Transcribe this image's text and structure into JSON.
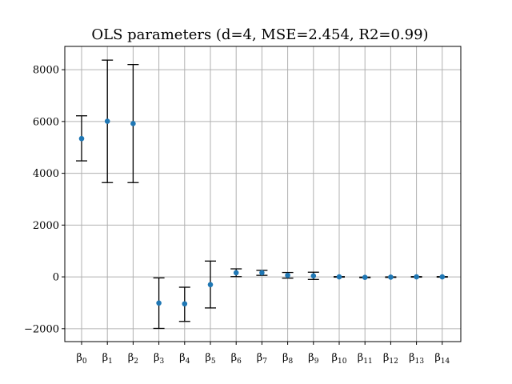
{
  "chart_data": {
    "type": "scatter",
    "title": "OLS parameters (d=4, MSE=2.454, R2=0.99)",
    "xlabel": "",
    "ylabel": "",
    "grid": true,
    "error_bars": true,
    "marker_color": "#1f77b4",
    "errorbar_color": "#000000",
    "ylim": [
      -2500,
      8900
    ],
    "yticks": [
      -2000,
      0,
      2000,
      4000,
      6000,
      8000
    ],
    "ytick_labels": [
      "−2000",
      "0",
      "2000",
      "4000",
      "6000",
      "8000"
    ],
    "categories": [
      "β0",
      "β1",
      "β2",
      "β3",
      "β4",
      "β5",
      "β6",
      "β7",
      "β8",
      "β9",
      "β10",
      "β11",
      "β12",
      "β13",
      "β14"
    ],
    "category_base": "β",
    "category_subscripts": [
      "0",
      "1",
      "2",
      "3",
      "4",
      "5",
      "6",
      "7",
      "8",
      "9",
      "10",
      "11",
      "12",
      "13",
      "14"
    ],
    "values": [
      5340,
      6010,
      5920,
      -1010,
      -1040,
      -300,
      160,
      160,
      60,
      40,
      0,
      -20,
      -10,
      0,
      0
    ],
    "error_low": [
      4480,
      3640,
      3640,
      -1990,
      -1720,
      -1200,
      10,
      60,
      -50,
      -100,
      -10,
      -30,
      -20,
      -10,
      -10
    ],
    "error_high": [
      6220,
      8370,
      8200,
      -40,
      -400,
      610,
      310,
      250,
      170,
      180,
      10,
      -10,
      0,
      10,
      10
    ]
  }
}
